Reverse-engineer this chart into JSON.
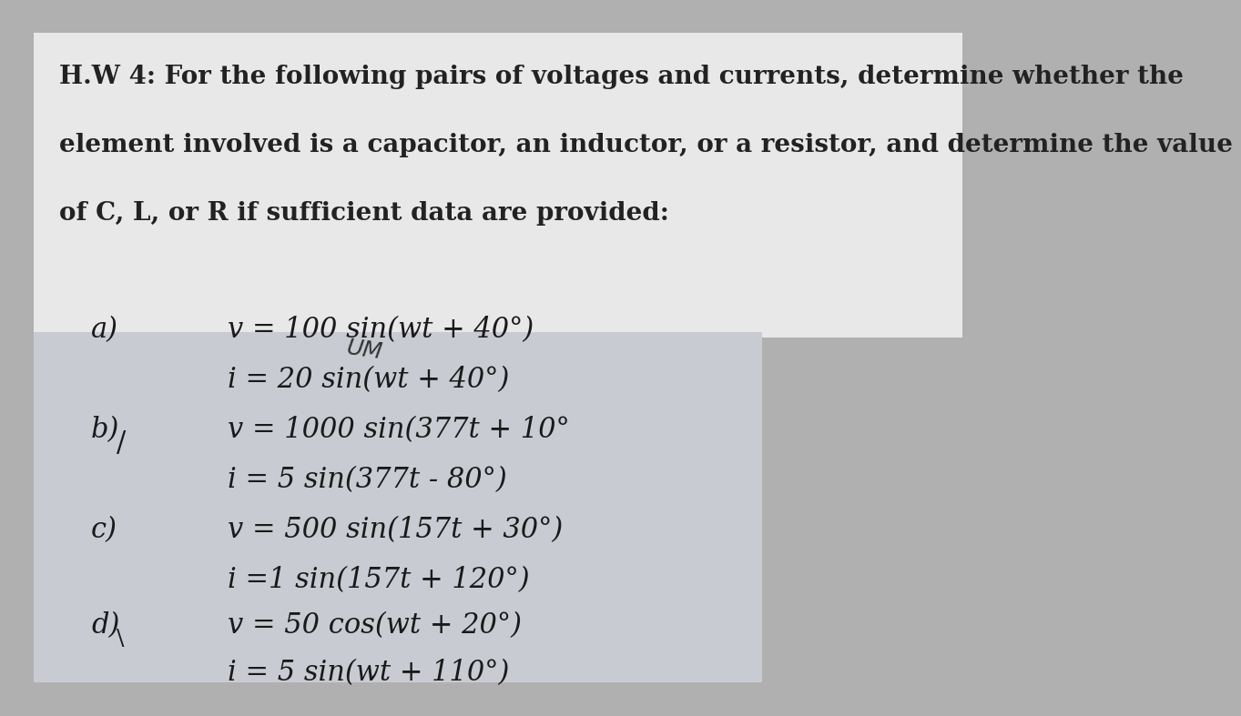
{
  "fig_bg": "#b0b0b0",
  "top_bg": "#e8e8e8",
  "bottom_bg": "#c8ccd2",
  "title_line1": "H.W 4: For the following pairs of voltages and currents, determine whether the",
  "title_line2": "element involved is a capacitor, an inductor, or a resistor, and determine the value",
  "title_line3": "of C, L, or R if sufficient data are provided:",
  "annotation": "UM",
  "label_a": "a)",
  "label_b": "b)",
  "label_c": "c)",
  "label_d": "d)",
  "va1": "v = 100 sin(wt + 40°)",
  "ia1": "i = 20 sin(wt + 40°)",
  "vb1": "v = 1000 sin(377t + 10°",
  "ib1": "i = 5 sin(377t - 80°)",
  "vc1": "v = 500 sin(157t + 30°)",
  "ic1": "i =1 sin(157t + 120°)",
  "vd1": "v = 50 cos(wt + 20°)",
  "id1": "i = 5 sin(wt + 110°)",
  "title_fontsize": 20,
  "eq_fontsize": 22,
  "label_fontsize": 22
}
